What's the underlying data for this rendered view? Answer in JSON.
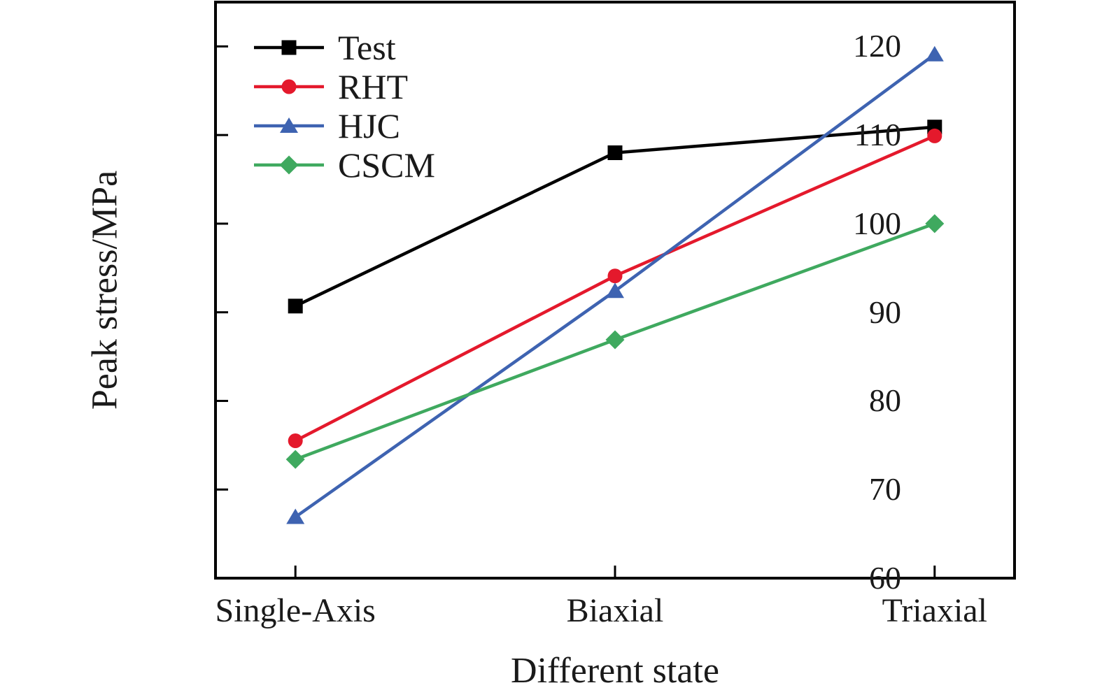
{
  "chart_data": {
    "type": "line",
    "title": "",
    "categories": [
      "Single-Axis",
      "Biaxial",
      "Triaxial"
    ],
    "series": [
      {
        "name": "Test",
        "color": "#000000",
        "marker": "square",
        "values": [
          90.7,
          108.0,
          110.9
        ]
      },
      {
        "name": "RHT",
        "color": "#e4192c",
        "marker": "circle",
        "values": [
          75.5,
          94.1,
          109.9
        ]
      },
      {
        "name": "HJC",
        "color": "#3e63b1",
        "marker": "triangle",
        "values": [
          66.9,
          92.4,
          119.1
        ]
      },
      {
        "name": "CSCM",
        "color": "#3fa95f",
        "marker": "diamond",
        "values": [
          73.4,
          86.9,
          100.0
        ]
      }
    ],
    "xlabel": "Different state",
    "ylabel": "Peak stress/MPa",
    "ylim": [
      60,
      125
    ],
    "yticks": [
      60,
      70,
      80,
      90,
      100,
      110,
      120
    ],
    "legend_position": "top-left",
    "grid": false,
    "axis_color": "#000000"
  }
}
